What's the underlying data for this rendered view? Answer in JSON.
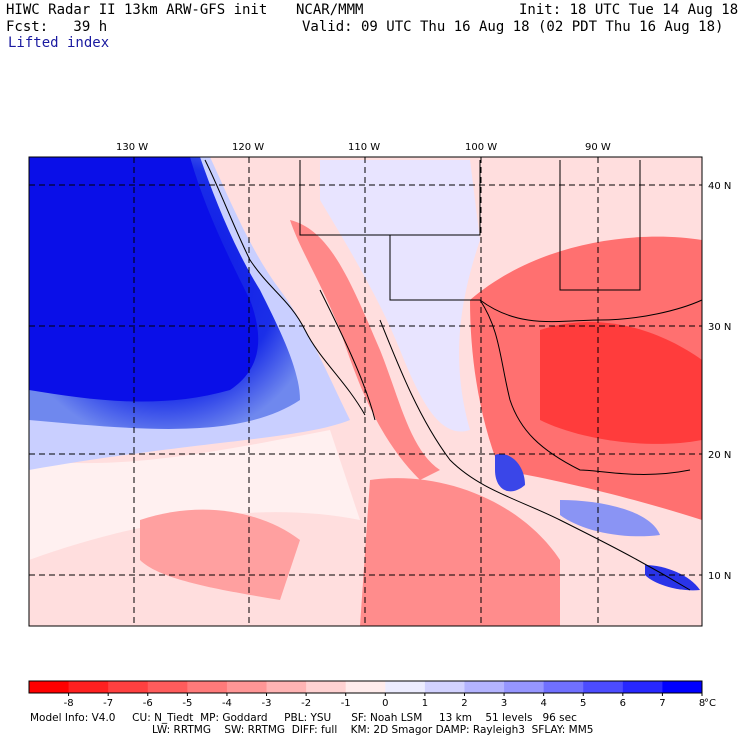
{
  "header": {
    "title": "HIWC Radar II 13km ARW-GFS init",
    "org": "NCAR/MMM",
    "init": "Init: 18 UTC Tue 14 Aug 18",
    "fcst": "Fcst:   39 h",
    "valid": "Valid: 09 UTC Thu 16 Aug 18 (02 PDT Thu 16 Aug 18)",
    "field": "Lifted index"
  },
  "map": {
    "longitude_labels": [
      "130 W",
      "120 W",
      "110 W",
      "100 W",
      "90 W"
    ],
    "latitude_labels": [
      "40 N",
      "30 N",
      "20 N",
      "10 N"
    ]
  },
  "colorbar": {
    "labels": [
      "-8",
      "-7",
      "-6",
      "-5",
      "-4",
      "-3",
      "-2",
      "-1",
      "0",
      "1",
      "2",
      "3",
      "4",
      "5",
      "6",
      "7",
      "8"
    ],
    "unit": "°C",
    "colors": [
      "#ff0000",
      "#ff2020",
      "#ff4040",
      "#ff5c5c",
      "#ff7a7a",
      "#ff9696",
      "#ffb4b4",
      "#ffd2d2",
      "#ffecec",
      "#ececff",
      "#d2d2ff",
      "#b4b4ff",
      "#9696ff",
      "#7070ff",
      "#4c4cff",
      "#2828ff",
      "#0000ff"
    ]
  },
  "model_info": {
    "line1": "Model Info: V4.0     CU: N_Tiedt  MP: Goddard     PBL: YSU      SF: Noah LSM     13 km    51 levels   96 sec",
    "line2": "LW: RRTMG    SW: RRTMG  DIFF: full    KM: 2D Smagor DAMP: Rayleigh3  SFLAY: MM5"
  }
}
